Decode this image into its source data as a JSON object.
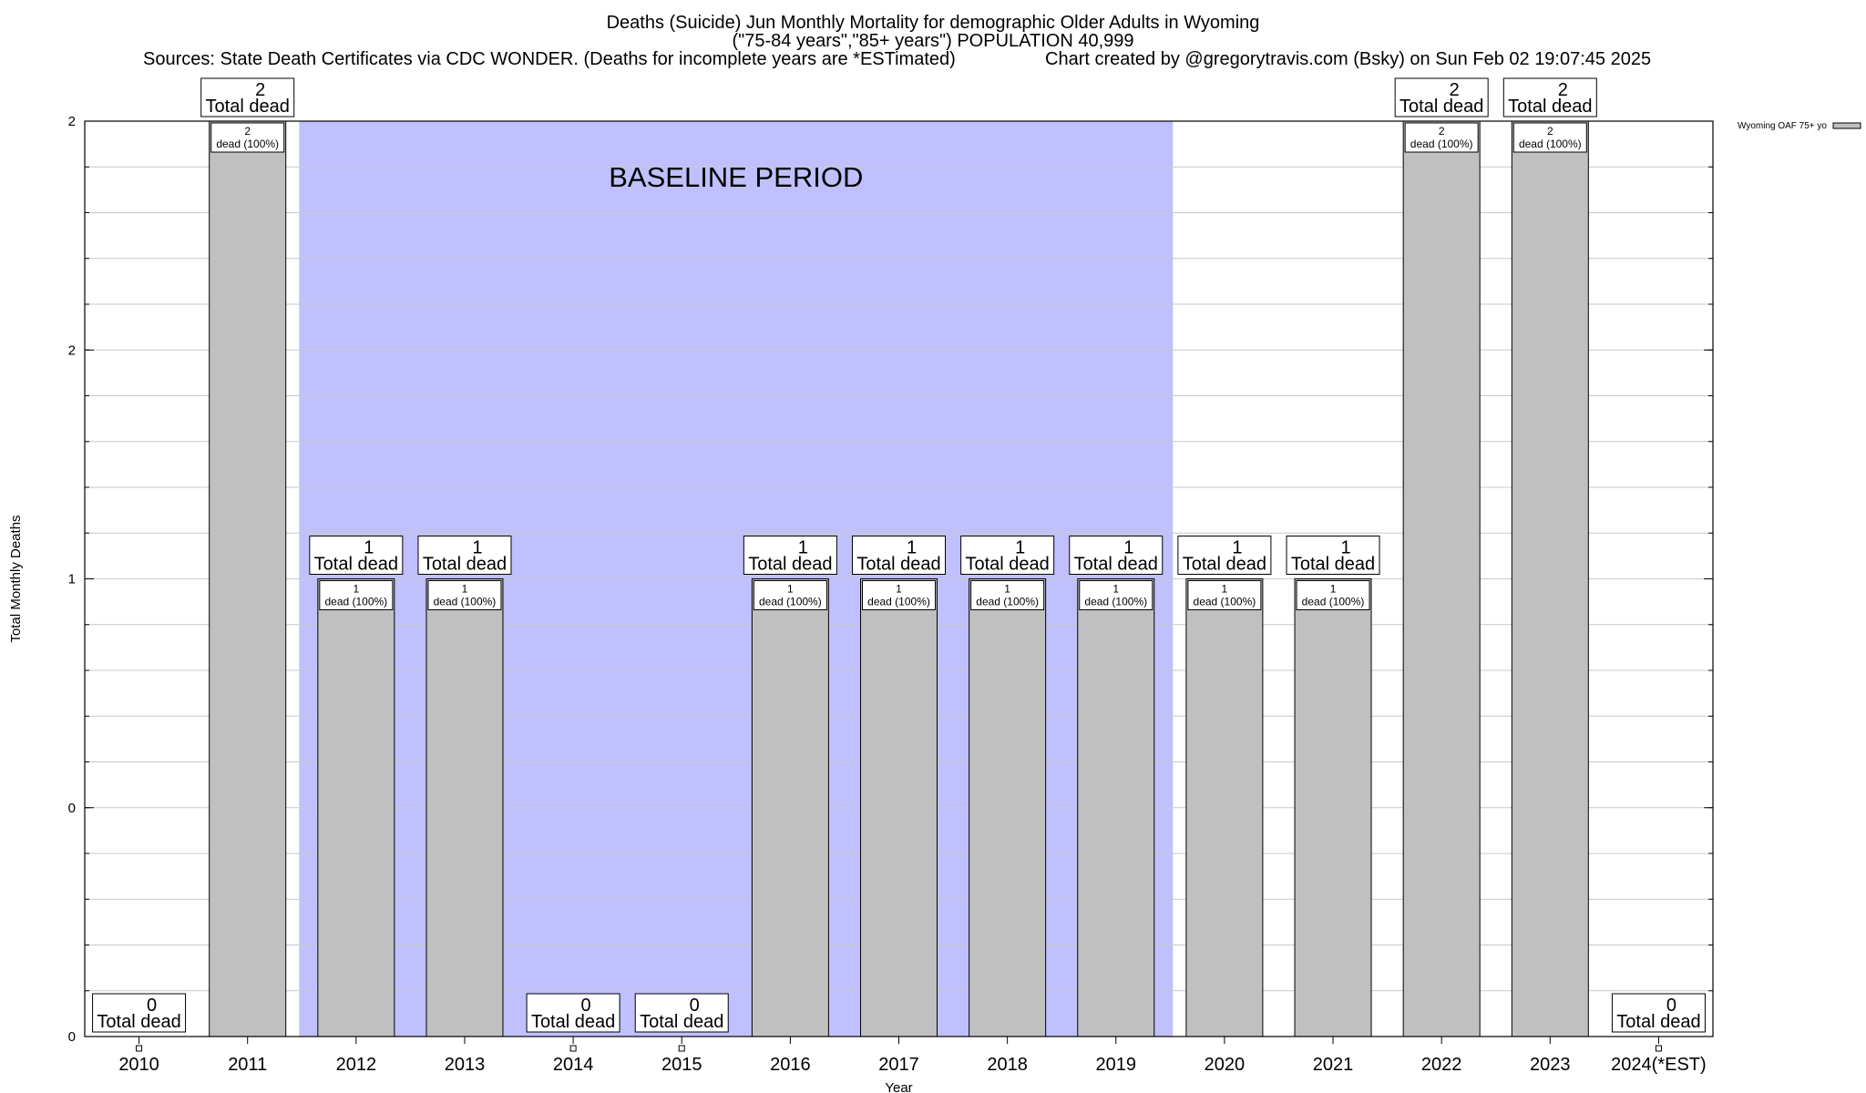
{
  "header": {
    "title": "Deaths (Suicide) Jun Monthly Mortality for demographic Older Adults in Wyoming",
    "subtitle": "(\"75-84 years\",\"85+ years\") POPULATION 40,999",
    "sources": "Sources: State Death Certificates via CDC WONDER. (Deaths for incomplete years are *ESTimated)",
    "credit": "Chart created by @gregorytravis.com (Bsky) on Sun Feb 02 19:07:45 2025"
  },
  "chart_data": {
    "type": "bar",
    "xlabel": "Year",
    "ylabel": "Total Monthly Deaths",
    "ylim": [
      0,
      2
    ],
    "y_tick_labels": [
      "0",
      "0",
      "1",
      "2",
      "2"
    ],
    "grid": true,
    "legend": {
      "entry": "Wyoming OAF 75+ yo",
      "placement": "top-right"
    },
    "baseline_label": "BASELINE PERIOD",
    "baseline_span": [
      "2012",
      "2019"
    ],
    "categories": [
      "2010",
      "2011",
      "2012",
      "2013",
      "2014",
      "2015",
      "2016",
      "2017",
      "2018",
      "2019",
      "2020",
      "2021",
      "2022",
      "2023",
      "2024(*EST)"
    ],
    "values": [
      0,
      2,
      1,
      1,
      0,
      0,
      1,
      1,
      1,
      1,
      1,
      1,
      2,
      2,
      0
    ],
    "total_label_suffix": "Total dead",
    "bar_label_suffix": "dead (100%)",
    "colors": {
      "bar": "#c0c0c0",
      "baseline": "#c0c0ff",
      "grid": "#c8c8c8"
    }
  }
}
